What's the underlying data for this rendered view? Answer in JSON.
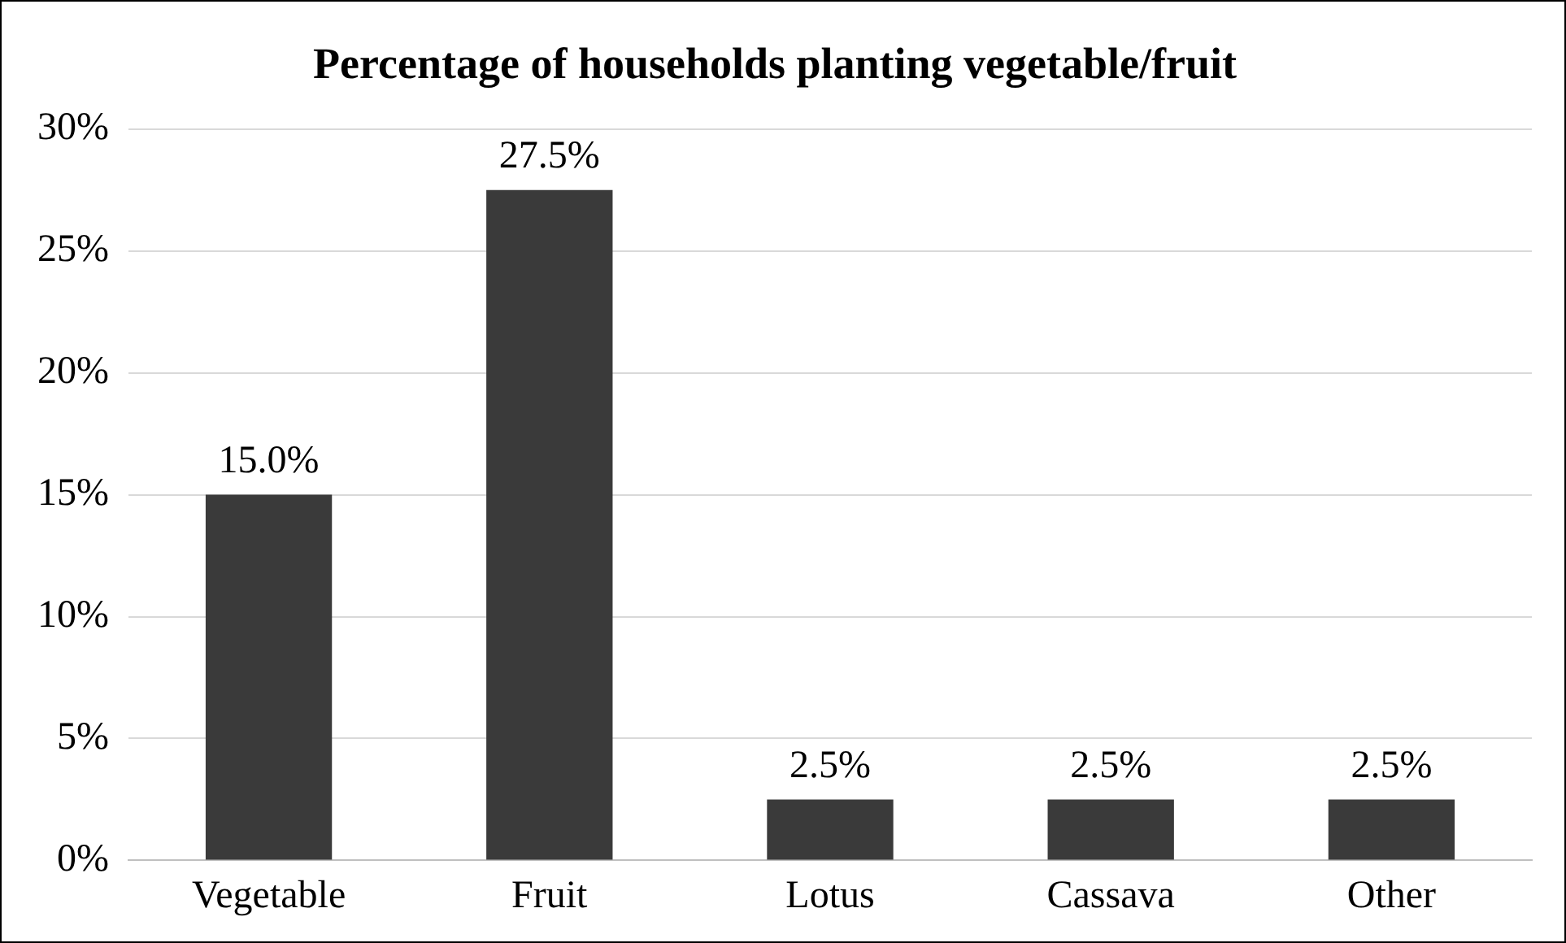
{
  "chart_data": {
    "type": "bar",
    "title": "Percentage of households planting vegetable/fruit",
    "categories": [
      "Vegetable",
      "Fruit",
      "Lotus",
      "Cassava",
      "Other"
    ],
    "values": [
      15.0,
      27.5,
      2.5,
      2.5,
      2.5
    ],
    "value_labels": [
      "15.0%",
      "27.5%",
      "2.5%",
      "2.5%",
      "2.5%"
    ],
    "color": "#3a3a3a",
    "ylim": [
      0,
      30
    ],
    "yticks": [
      {
        "value": 0,
        "label": "0%"
      },
      {
        "value": 5,
        "label": "5%"
      },
      {
        "value": 10,
        "label": "10%"
      },
      {
        "value": 15,
        "label": "15%"
      },
      {
        "value": 20,
        "label": "20%"
      },
      {
        "value": 25,
        "label": "25%"
      },
      {
        "value": 30,
        "label": "30%"
      }
    ],
    "grid": "y"
  }
}
